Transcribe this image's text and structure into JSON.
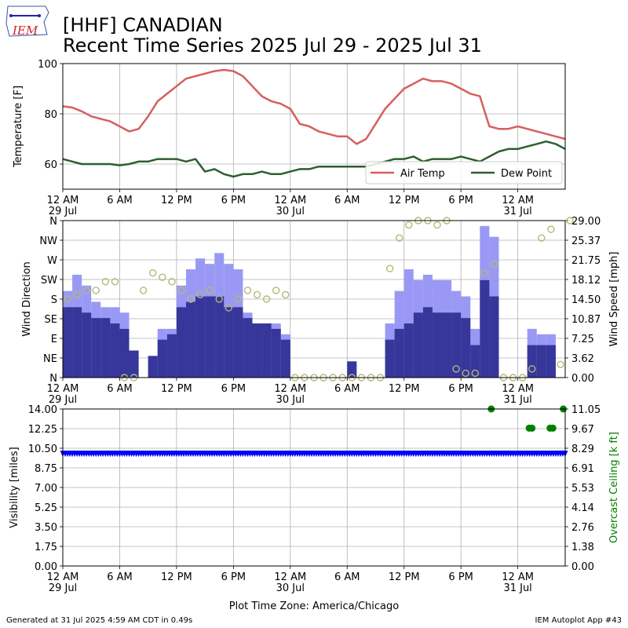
{
  "header": {
    "title_line1": "[HHF] CANADIAN",
    "title_line2": "Recent Time Series 2025 Jul 29 - 2025 Jul 31",
    "logo_text": "IEM"
  },
  "footer": {
    "generated": "Generated at 31 Jul 2025 4:59 AM CDT in 0.49s",
    "app": "IEM Autoplot App #43",
    "xlabel": "Plot Time Zone: America/Chicago"
  },
  "colors": {
    "air_temp": "#d65f5f",
    "dew_point": "#2e5e2e",
    "gust_bar": "#9999f5",
    "speed_bar": "#36369b",
    "wind_dir": "#b6b779",
    "visibility": "#0000ff",
    "ceiling": "#008000",
    "grid": "#b0b0b0"
  },
  "chart_data": [
    {
      "type": "line",
      "name": "temperature",
      "ylabel": "Temperature [F]",
      "xlim": [
        0,
        53
      ],
      "ylim": [
        50,
        100
      ],
      "yticks": [
        60,
        80,
        100
      ],
      "xticks": [
        {
          "h": 0,
          "label": "12 AM",
          "sub": "29 Jul"
        },
        {
          "h": 6,
          "label": "6 AM",
          "sub": ""
        },
        {
          "h": 12,
          "label": "12 PM",
          "sub": ""
        },
        {
          "h": 18,
          "label": "6 PM",
          "sub": ""
        },
        {
          "h": 24,
          "label": "12 AM",
          "sub": "30 Jul"
        },
        {
          "h": 30,
          "label": "6 AM",
          "sub": ""
        },
        {
          "h": 36,
          "label": "12 PM",
          "sub": ""
        },
        {
          "h": 42,
          "label": "6 PM",
          "sub": ""
        },
        {
          "h": 48,
          "label": "12 AM",
          "sub": "31 Jul"
        }
      ],
      "legend": "bottom-right",
      "series": [
        {
          "name": "Air Temp",
          "color": "#d65f5f",
          "x": [
            0,
            1,
            2,
            3,
            4,
            5,
            6,
            7,
            8,
            9,
            10,
            11,
            12,
            13,
            14,
            15,
            16,
            17,
            18,
            19,
            20,
            21,
            22,
            23,
            24,
            25,
            26,
            27,
            28,
            29,
            30,
            31,
            32,
            33,
            34,
            35,
            36,
            37,
            38,
            39,
            40,
            41,
            42,
            43,
            44,
            45,
            46,
            47,
            48,
            49,
            50,
            51,
            52,
            53
          ],
          "y": [
            83,
            82.5,
            81,
            79,
            78,
            77,
            75,
            73,
            74,
            79,
            85,
            88,
            91,
            94,
            95,
            96,
            97,
            97.5,
            97,
            95,
            91,
            87,
            85,
            84,
            82,
            76,
            75,
            73,
            72,
            71,
            71,
            68,
            70,
            76,
            82,
            86,
            90,
            92,
            94,
            93,
            93,
            92,
            90,
            88,
            87,
            75,
            74,
            74,
            75,
            74,
            73,
            72,
            71,
            70
          ]
        },
        {
          "name": "Dew Point",
          "color": "#2e5e2e",
          "x": [
            0,
            1,
            2,
            3,
            4,
            5,
            6,
            7,
            8,
            9,
            10,
            11,
            12,
            13,
            14,
            15,
            16,
            17,
            18,
            19,
            20,
            21,
            22,
            23,
            24,
            25,
            26,
            27,
            28,
            29,
            30,
            31,
            32,
            33,
            34,
            35,
            36,
            37,
            38,
            39,
            40,
            41,
            42,
            43,
            44,
            45,
            46,
            47,
            48,
            49,
            50,
            51,
            52,
            53
          ],
          "y": [
            62,
            61,
            60,
            60,
            60,
            60,
            59.5,
            60,
            61,
            61,
            62,
            62,
            62,
            61,
            62,
            57,
            58,
            56,
            55,
            56,
            56,
            57,
            56,
            56,
            57,
            58,
            58,
            59,
            59,
            59,
            59,
            59,
            59,
            60,
            61,
            62,
            62,
            63,
            61,
            62,
            62,
            62,
            63,
            62,
            61,
            63,
            65,
            66,
            66,
            67,
            68,
            69,
            68,
            66
          ]
        }
      ]
    },
    {
      "type": "bar",
      "name": "wind",
      "ylabel": "Wind Direction",
      "y2label": "Wind Speed [mph]",
      "xlim": [
        0,
        53
      ],
      "ylim": [
        0,
        360
      ],
      "y2lim": [
        0,
        29
      ],
      "yticks": [
        "N",
        "NE",
        "E",
        "SE",
        "S",
        "SW",
        "W",
        "NW",
        "N"
      ],
      "y2ticks": [
        "0.00",
        "3.62",
        "7.25",
        "10.87",
        "14.50",
        "18.12",
        "21.75",
        "25.37",
        "29.00"
      ],
      "series": [
        {
          "name": "Gust",
          "color": "#9999f5",
          "x": [
            0,
            1,
            2,
            3,
            4,
            5,
            6,
            7,
            8,
            9,
            10,
            11,
            12,
            13,
            14,
            15,
            16,
            17,
            18,
            19,
            20,
            21,
            22,
            23,
            24,
            25,
            26,
            27,
            28,
            29,
            30,
            31,
            32,
            33,
            34,
            35,
            36,
            37,
            38,
            39,
            40,
            41,
            42,
            43,
            44,
            45,
            46,
            47,
            48,
            49,
            50,
            51,
            52,
            53
          ],
          "values": [
            16,
            19,
            17,
            14,
            13,
            13,
            12,
            5,
            0,
            4,
            9,
            9,
            17,
            20,
            22,
            21,
            23,
            21,
            20,
            12,
            10,
            10,
            10,
            8,
            0,
            0,
            0,
            0,
            0,
            0,
            0,
            0,
            0,
            0,
            10,
            16,
            20,
            18,
            19,
            18,
            18,
            16,
            15,
            9,
            28,
            26,
            0,
            0,
            0,
            9,
            8,
            8,
            0,
            0
          ]
        },
        {
          "name": "Speed",
          "color": "#36369b",
          "x": [
            0,
            1,
            2,
            3,
            4,
            5,
            6,
            7,
            8,
            9,
            10,
            11,
            12,
            13,
            14,
            15,
            16,
            17,
            18,
            19,
            20,
            21,
            22,
            23,
            24,
            25,
            26,
            27,
            28,
            29,
            30,
            31,
            32,
            33,
            34,
            35,
            36,
            37,
            38,
            39,
            40,
            41,
            42,
            43,
            44,
            45,
            46,
            47,
            48,
            49,
            50,
            51,
            52,
            53
          ],
          "values": [
            13,
            13,
            12,
            11,
            11,
            10,
            9,
            5,
            0,
            4,
            7,
            8,
            13,
            14,
            15,
            15,
            15,
            13,
            13,
            11,
            10,
            10,
            9,
            7,
            0,
            0,
            0,
            0,
            0,
            0,
            3,
            0,
            0,
            0,
            7,
            9,
            10,
            12,
            13,
            12,
            12,
            12,
            11,
            6,
            18,
            15,
            0,
            0,
            0,
            6,
            6,
            6,
            0,
            0
          ]
        },
        {
          "name": "Wind Direction",
          "color": "#b6b779",
          "x": [
            0,
            1,
            2,
            3,
            4,
            5,
            6,
            7,
            8,
            9,
            10,
            11,
            12,
            13,
            14,
            15,
            16,
            17,
            18,
            19,
            20,
            21,
            22,
            23,
            24,
            25,
            26,
            27,
            28,
            29,
            30,
            31,
            32,
            33,
            34,
            35,
            36,
            37,
            38,
            39,
            40,
            41,
            42,
            43,
            44,
            45,
            46,
            47,
            48,
            49,
            50,
            51,
            52,
            53
          ],
          "values": [
            180,
            190,
            200,
            200,
            220,
            220,
            0,
            0,
            200,
            240,
            230,
            220,
            200,
            180,
            190,
            200,
            180,
            160,
            180,
            200,
            190,
            180,
            200,
            190,
            0,
            0,
            0,
            0,
            0,
            0,
            0,
            0,
            0,
            0,
            250,
            320,
            350,
            360,
            360,
            350,
            360,
            20,
            10,
            10,
            240,
            260,
            0,
            0,
            0,
            20,
            320,
            340,
            30,
            360
          ]
        }
      ]
    },
    {
      "type": "scatter",
      "name": "visibility",
      "ylabel": "Visibility [miles]",
      "y2label": "Overcast Ceiling [k ft]",
      "xlim": [
        0,
        53
      ],
      "ylim": [
        0,
        14
      ],
      "y2lim": [
        0,
        11.05
      ],
      "yticks": [
        "0.00",
        "1.75",
        "3.50",
        "5.25",
        "7.00",
        "8.75",
        "10.50",
        "12.25",
        "14.00"
      ],
      "y2ticks": [
        "0.00",
        "1.38",
        "2.76",
        "4.14",
        "5.53",
        "6.91",
        "8.29",
        "9.67",
        "11.05"
      ],
      "series": [
        {
          "name": "Visibility",
          "color": "#0000ff",
          "y": 10
        },
        {
          "name": "Overcast Ceiling",
          "color": "#008000",
          "x": [
            45.2,
            49.2,
            49.5,
            51.4,
            51.7,
            52.8
          ],
          "values": [
            11.05,
            9.7,
            9.7,
            9.7,
            9.7,
            11.05
          ]
        }
      ]
    }
  ]
}
